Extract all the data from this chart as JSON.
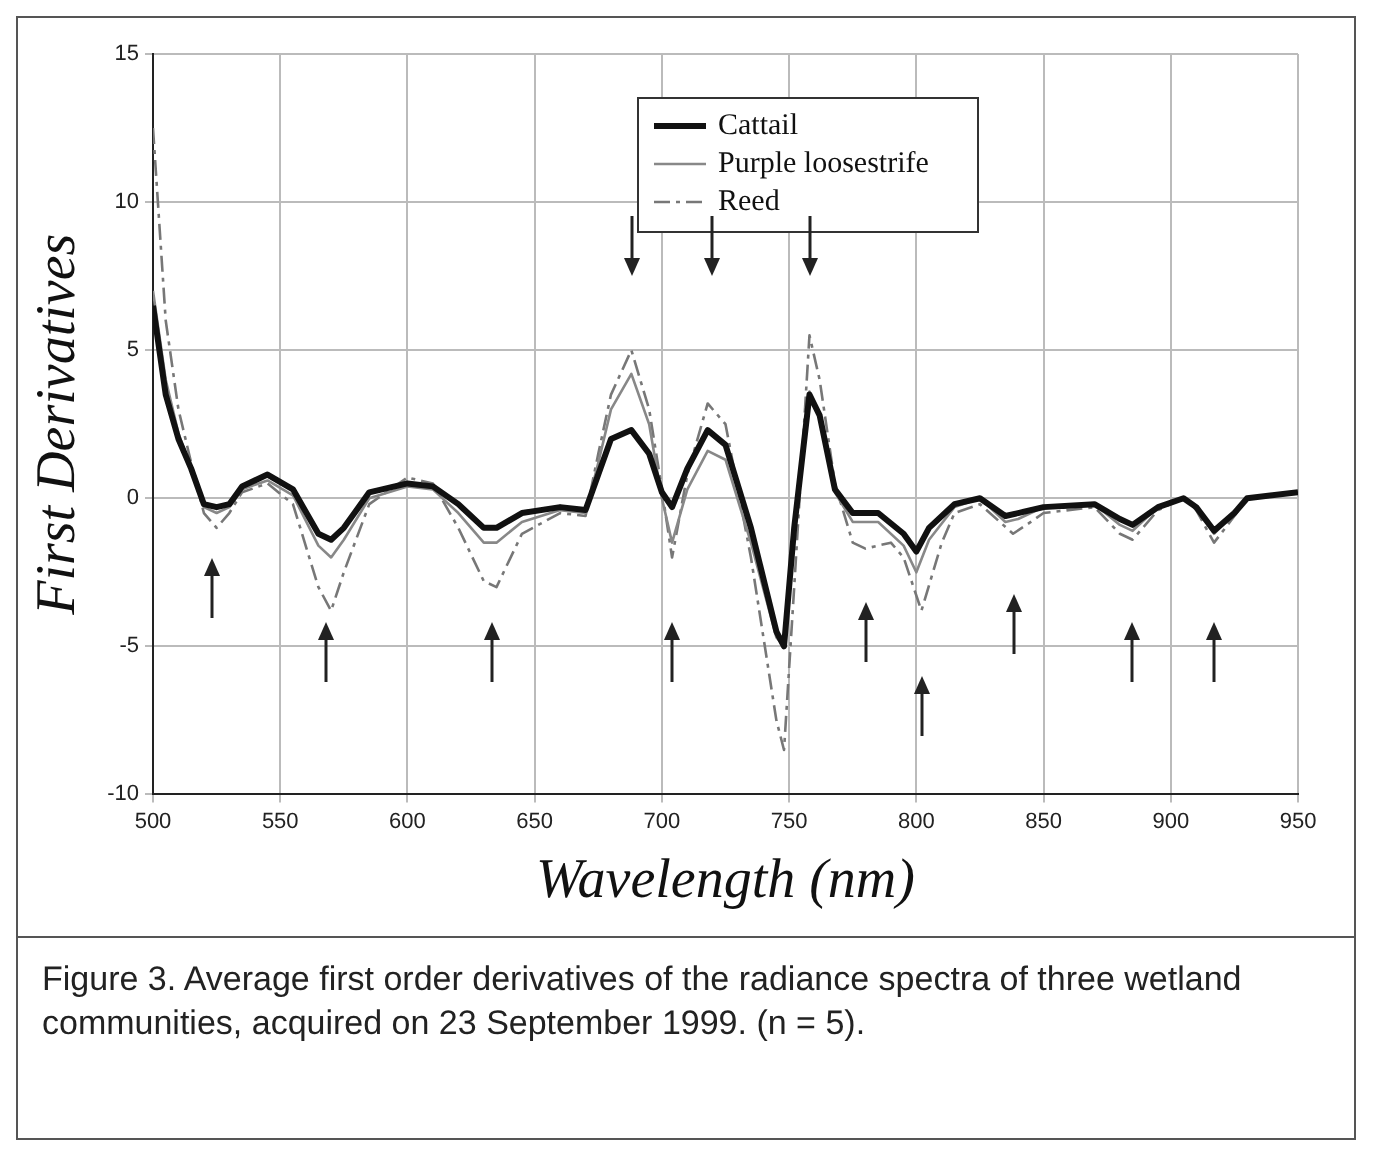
{
  "chart_data": {
    "type": "line",
    "xlabel": "Wavelength (nm)",
    "ylabel": "First Derivatives",
    "xlim": [
      500,
      950
    ],
    "xticks": [
      500,
      550,
      600,
      650,
      700,
      750,
      800,
      850,
      900,
      950
    ],
    "ylim": [
      -10,
      15
    ],
    "yticks": [
      -10,
      -5,
      0,
      5,
      10,
      15
    ],
    "grid": true,
    "legend": "top right",
    "marker": "none",
    "series": [
      {
        "name": "Cattail",
        "color": "#111111",
        "line_style": "solid",
        "x": [
          500,
          505,
          510,
          515,
          520,
          525,
          530,
          535,
          545,
          555,
          565,
          570,
          575,
          585,
          600,
          610,
          620,
          630,
          635,
          645,
          660,
          670,
          675,
          680,
          688,
          695,
          700,
          704,
          710,
          718,
          725,
          735,
          745,
          748,
          752,
          758,
          762,
          768,
          775,
          785,
          795,
          800,
          805,
          815,
          825,
          835,
          840,
          850,
          870,
          880,
          885,
          895,
          905,
          910,
          917,
          925,
          930,
          950
        ],
        "values": [
          6.5,
          3.5,
          2,
          1,
          -0.2,
          -0.3,
          -0.2,
          0.4,
          0.8,
          0.3,
          -1.2,
          -1.4,
          -1,
          0.2,
          0.5,
          0.4,
          -0.2,
          -1,
          -1,
          -0.5,
          -0.3,
          -0.4,
          0.8,
          2,
          2.3,
          1.5,
          0.2,
          -0.3,
          1,
          2.3,
          1.8,
          -1,
          -4.5,
          -5,
          -1,
          3.5,
          2.8,
          0.3,
          -0.5,
          -0.5,
          -1.2,
          -1.8,
          -1,
          -0.2,
          0,
          -0.6,
          -0.5,
          -0.3,
          -0.2,
          -0.7,
          -0.9,
          -0.3,
          0,
          -0.3,
          -1.1,
          -0.5,
          0,
          0.2
        ]
      },
      {
        "name": "Purple loosestrife",
        "color": "#888888",
        "line_style": "solid",
        "x": [
          500,
          505,
          510,
          515,
          520,
          525,
          530,
          535,
          545,
          555,
          565,
          570,
          575,
          585,
          600,
          610,
          620,
          630,
          635,
          645,
          660,
          670,
          675,
          680,
          688,
          695,
          700,
          704,
          710,
          718,
          725,
          735,
          745,
          748,
          752,
          758,
          762,
          768,
          775,
          785,
          795,
          800,
          805,
          815,
          825,
          835,
          840,
          850,
          870,
          880,
          885,
          895,
          905,
          910,
          917,
          925,
          930,
          950
        ],
        "values": [
          7,
          4,
          2.2,
          1,
          -0.3,
          -0.5,
          -0.3,
          0.3,
          0.6,
          0.1,
          -1.6,
          -2,
          -1.4,
          0,
          0.4,
          0.3,
          -0.5,
          -1.5,
          -1.5,
          -0.8,
          -0.4,
          -0.5,
          1.2,
          3,
          4.2,
          2.5,
          0,
          -1.5,
          0.3,
          1.6,
          1.3,
          -1.5,
          -4.7,
          -5,
          -1.2,
          3.6,
          2.8,
          0.2,
          -0.8,
          -0.8,
          -1.6,
          -2.5,
          -1.4,
          -0.3,
          0,
          -0.8,
          -0.7,
          -0.3,
          -0.2,
          -0.9,
          -1.1,
          -0.3,
          0,
          -0.3,
          -1.2,
          -0.5,
          0,
          0.2
        ]
      },
      {
        "name": "Reed",
        "color": "#777777",
        "line_style": "dashed",
        "x": [
          500,
          505,
          510,
          515,
          520,
          525,
          530,
          535,
          545,
          555,
          565,
          570,
          575,
          585,
          600,
          610,
          620,
          630,
          635,
          645,
          660,
          670,
          675,
          680,
          688,
          695,
          700,
          704,
          710,
          718,
          725,
          735,
          745,
          748,
          752,
          758,
          762,
          768,
          775,
          780,
          790,
          795,
          802,
          810,
          815,
          825,
          838,
          845,
          850,
          870,
          880,
          885,
          895,
          905,
          910,
          917,
          925,
          930,
          950
        ],
        "values": [
          12.5,
          6,
          3,
          1.2,
          -0.5,
          -1,
          -0.5,
          0.2,
          0.5,
          -0.2,
          -3,
          -3.8,
          -2.5,
          -0.2,
          0.7,
          0.5,
          -1,
          -2.8,
          -3,
          -1.2,
          -0.5,
          -0.6,
          1.5,
          3.5,
          5,
          3,
          0.3,
          -2,
          0.8,
          3.2,
          2.5,
          -2,
          -7.5,
          -8.5,
          -3,
          5.5,
          4,
          0.5,
          -1.5,
          -1.7,
          -1.5,
          -2,
          -3.8,
          -1.5,
          -0.5,
          -0.2,
          -1.2,
          -0.8,
          -0.5,
          -0.3,
          -1.2,
          -1.4,
          -0.4,
          0,
          -0.4,
          -1.5,
          -0.6,
          0,
          0.2
        ]
      }
    ],
    "annotations": [
      "Figure 3. Average first order derivatives of the radiance spectra of three wetland communities, acquired on 23 September 1999. (n = 5)."
    ]
  }
}
